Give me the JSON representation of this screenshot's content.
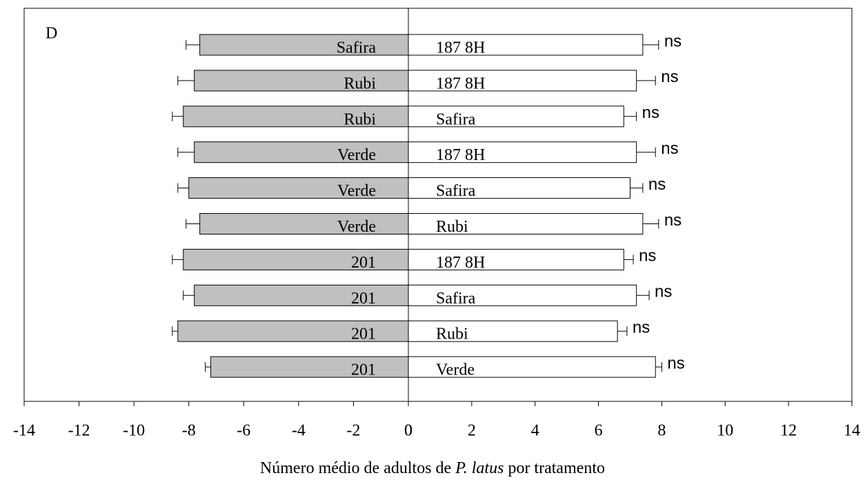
{
  "chart_data": {
    "type": "diverging_bar",
    "panel_label": "D",
    "xlabel": [
      "Número médio de adultos de ",
      "P. latus",
      " por tratamento"
    ],
    "left": {
      "categories": [
        "Safira",
        "Rubi",
        "Rubi",
        "Verde",
        "Verde",
        "Verde",
        "201",
        "201",
        "201",
        "201"
      ],
      "values": [
        -7.6,
        -7.8,
        -8.2,
        -7.8,
        -8.0,
        -7.6,
        -8.2,
        -7.8,
        -8.4,
        -7.2
      ],
      "errors": [
        0.5,
        0.6,
        0.4,
        0.6,
        0.4,
        0.5,
        0.4,
        0.4,
        0.2,
        0.2
      ],
      "color": "#c0c0c0",
      "xlim": [
        -14,
        0
      ],
      "xticks": [
        -14,
        -12,
        -10,
        -8,
        -6,
        -4,
        -2,
        0
      ]
    },
    "right": {
      "categories": [
        "187 8H",
        "187 8H",
        "Safira",
        "187 8H",
        "Safira",
        "Rubi",
        "187 8H",
        "Safira",
        "Rubi",
        "Verde"
      ],
      "values": [
        7.4,
        7.2,
        6.8,
        7.2,
        7.0,
        7.4,
        6.8,
        7.2,
        6.6,
        7.8
      ],
      "errors": [
        0.5,
        0.6,
        0.4,
        0.6,
        0.4,
        0.5,
        0.3,
        0.4,
        0.3,
        0.2
      ],
      "color": "#ffffff",
      "xlim": [
        0,
        14
      ],
      "xticks": [
        0,
        2,
        4,
        6,
        8,
        10,
        12,
        14
      ]
    },
    "significance": [
      "ns",
      "ns",
      "ns",
      "ns",
      "ns",
      "ns",
      "ns",
      "ns",
      "ns",
      "ns"
    ]
  }
}
